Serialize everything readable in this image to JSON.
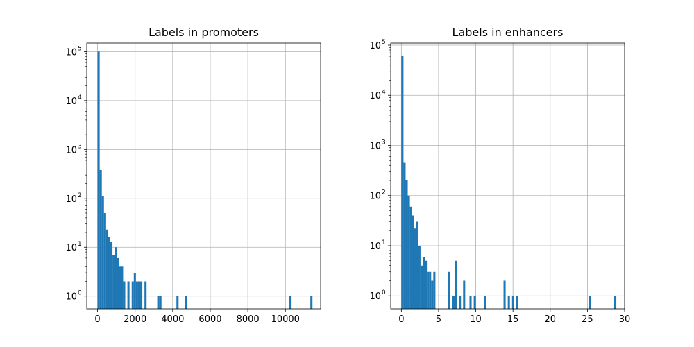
{
  "chart_data": [
    {
      "type": "bar",
      "title": "Labels in promoters",
      "xlabel": "",
      "ylabel": "",
      "xscale": "linear",
      "yscale": "log",
      "xlim": [
        -575,
        11875
      ],
      "ylim": [
        0.55,
        150000
      ],
      "grid": true,
      "color": "#1f77b4",
      "x_ticks": [
        0,
        2000,
        4000,
        6000,
        8000,
        10000
      ],
      "x_tick_labels": [
        "0",
        "2000",
        "4000",
        "6000",
        "8000",
        "10000"
      ],
      "y_ticks": [
        1,
        10,
        100,
        1000,
        10000,
        100000
      ],
      "y_tick_labels": [
        "10",
        "10",
        "10",
        "10",
        "10",
        "10"
      ],
      "y_tick_exponents": [
        "0",
        "1",
        "2",
        "3",
        "4",
        "5"
      ],
      "bin_width": 113.5,
      "bins": [
        {
          "x": 0,
          "count": 100000
        },
        {
          "x": 113.5,
          "count": 380
        },
        {
          "x": 227,
          "count": 110
        },
        {
          "x": 340.5,
          "count": 50
        },
        {
          "x": 454,
          "count": 23
        },
        {
          "x": 567.5,
          "count": 16
        },
        {
          "x": 681,
          "count": 13
        },
        {
          "x": 794.5,
          "count": 7
        },
        {
          "x": 908,
          "count": 10
        },
        {
          "x": 1021.5,
          "count": 6
        },
        {
          "x": 1135,
          "count": 4
        },
        {
          "x": 1248.5,
          "count": 4
        },
        {
          "x": 1362,
          "count": 2
        },
        {
          "x": 1589,
          "count": 2
        },
        {
          "x": 1816,
          "count": 2
        },
        {
          "x": 1929.5,
          "count": 3
        },
        {
          "x": 2043,
          "count": 2
        },
        {
          "x": 2156.5,
          "count": 2
        },
        {
          "x": 2270,
          "count": 2
        },
        {
          "x": 2497,
          "count": 2
        },
        {
          "x": 3178,
          "count": 1
        },
        {
          "x": 3291.5,
          "count": 1
        },
        {
          "x": 4199.5,
          "count": 1
        },
        {
          "x": 4653.5,
          "count": 1
        },
        {
          "x": 10214,
          "count": 1
        },
        {
          "x": 11327,
          "count": 1
        }
      ]
    },
    {
      "type": "bar",
      "title": "Labels in enhancers",
      "xlabel": "",
      "ylabel": "",
      "xscale": "linear",
      "yscale": "log",
      "xlim": [
        -1.43,
        30.0
      ],
      "ylim": [
        0.55,
        110000
      ],
      "grid": true,
      "color": "#1f77b4",
      "x_ticks": [
        0,
        5,
        10,
        15,
        20,
        25,
        30
      ],
      "x_tick_labels": [
        "0",
        "5",
        "10",
        "15",
        "20",
        "25",
        "30"
      ],
      "y_ticks": [
        1,
        10,
        100,
        1000,
        10000,
        100000
      ],
      "y_tick_labels": [
        "10",
        "10",
        "10",
        "10",
        "10",
        "10"
      ],
      "y_tick_exponents": [
        "0",
        "1",
        "2",
        "3",
        "4",
        "5"
      ],
      "bin_width": 0.286,
      "bins": [
        {
          "x": 0,
          "count": 60000
        },
        {
          "x": 0.286,
          "count": 450
        },
        {
          "x": 0.572,
          "count": 200
        },
        {
          "x": 0.858,
          "count": 100
        },
        {
          "x": 1.144,
          "count": 60
        },
        {
          "x": 1.43,
          "count": 40
        },
        {
          "x": 1.716,
          "count": 22
        },
        {
          "x": 2.002,
          "count": 30
        },
        {
          "x": 2.288,
          "count": 10
        },
        {
          "x": 2.574,
          "count": 4
        },
        {
          "x": 2.86,
          "count": 6
        },
        {
          "x": 3.146,
          "count": 5
        },
        {
          "x": 3.432,
          "count": 3
        },
        {
          "x": 3.718,
          "count": 3
        },
        {
          "x": 4.004,
          "count": 2
        },
        {
          "x": 4.29,
          "count": 3
        },
        {
          "x": 6.292,
          "count": 3
        },
        {
          "x": 6.864,
          "count": 1
        },
        {
          "x": 7.15,
          "count": 5
        },
        {
          "x": 7.722,
          "count": 1
        },
        {
          "x": 8.294,
          "count": 2
        },
        {
          "x": 9.152,
          "count": 1
        },
        {
          "x": 9.724,
          "count": 1
        },
        {
          "x": 11.154,
          "count": 1
        },
        {
          "x": 13.728,
          "count": 2
        },
        {
          "x": 14.3,
          "count": 1
        },
        {
          "x": 14.872,
          "count": 1
        },
        {
          "x": 15.444,
          "count": 1
        },
        {
          "x": 25.168,
          "count": 1
        },
        {
          "x": 28.6,
          "count": 1
        }
      ]
    }
  ]
}
